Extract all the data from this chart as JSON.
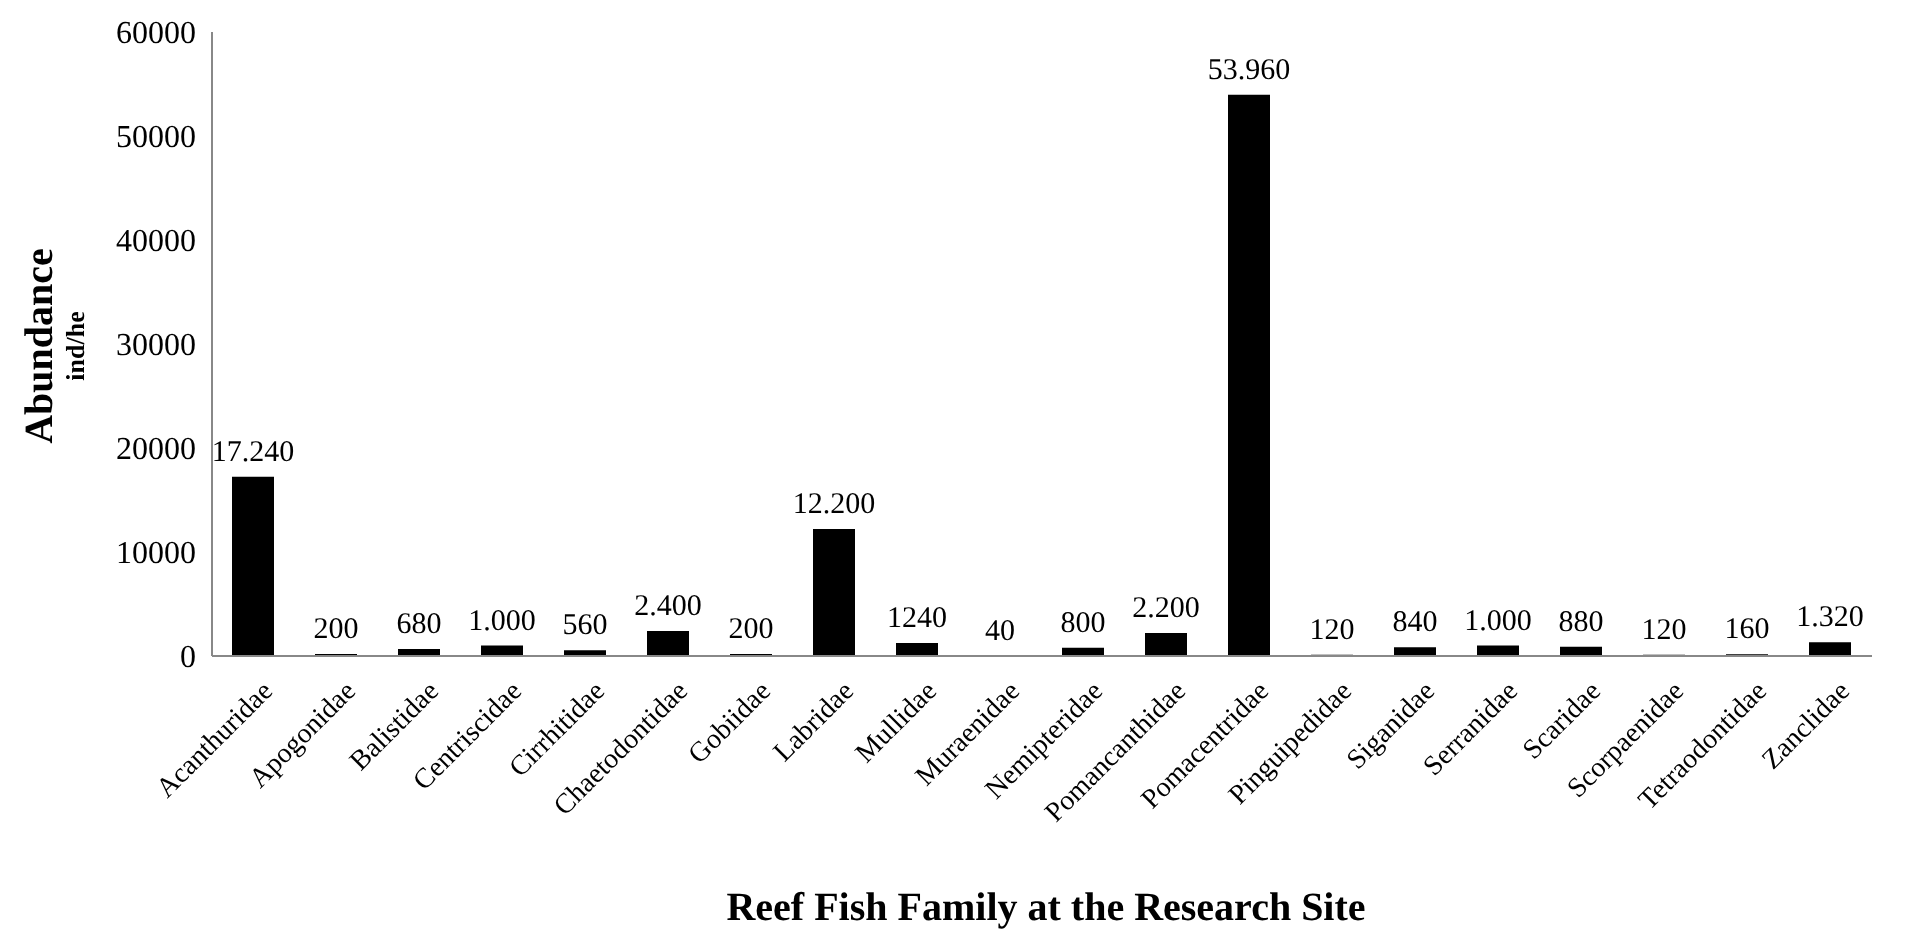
{
  "chart_data": {
    "type": "bar",
    "xlabel": "Reef Fish Family at the Research Site",
    "ylabel": "Abundance\nind/he",
    "categories": [
      "Acanthuridae",
      "Apogonidae",
      "Balistidae",
      "Centriscidae",
      "Cirrhitidae",
      "Chaetodontidae",
      "Gobiidae",
      "Labridae",
      "Mullidae",
      "Muraenidae",
      "Nemipteridae",
      "Pomancanthidae",
      "Pomacentridae",
      "Pinguipedidae",
      "Siganidae",
      "Serranidae",
      "Scaridae",
      "Scorpaenidae",
      "Tetraodontidae",
      "Zanclidae"
    ],
    "values": [
      17240,
      200,
      680,
      1000,
      560,
      2400,
      200,
      12200,
      1240,
      40,
      800,
      2200,
      53960,
      120,
      840,
      1000,
      880,
      120,
      160,
      1320
    ],
    "value_labels": [
      "17.240",
      "200",
      "680",
      "1.000",
      "560",
      "2.400",
      "200",
      "12.200",
      "1240",
      "40",
      "800",
      "2.200",
      "53.960",
      "120",
      "840",
      "1.000",
      "880",
      "120",
      "160",
      "1.320"
    ],
    "color": "#000000",
    "ylim": [
      0,
      60000
    ],
    "yticks": [
      0,
      10000,
      20000,
      30000,
      40000,
      50000,
      60000
    ],
    "grid": false,
    "legend": false
  }
}
